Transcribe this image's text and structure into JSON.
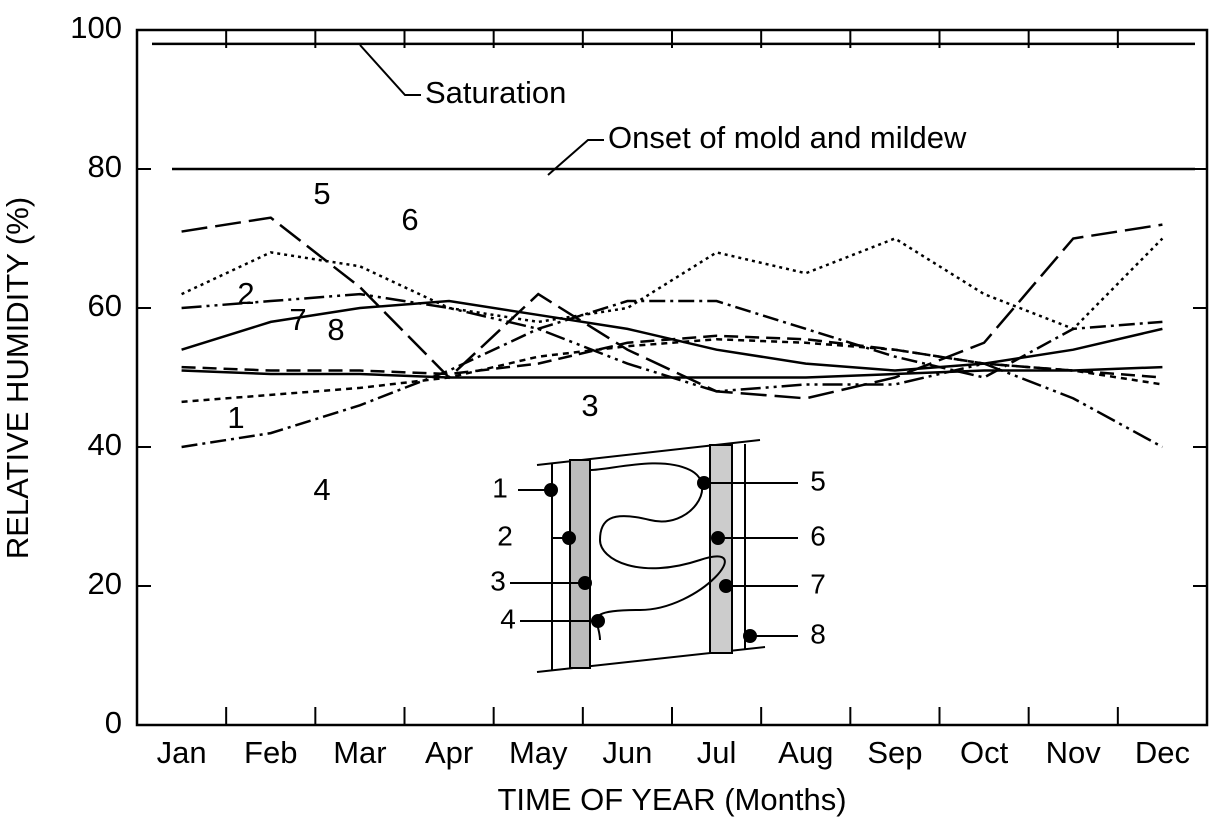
{
  "chart_data": {
    "type": "line",
    "xlabel": "TIME OF YEAR (Months)",
    "ylabel": "RELATIVE HUMIDITY (%)",
    "categories": [
      "Jan",
      "Feb",
      "Mar",
      "Apr",
      "May",
      "Jun",
      "Jul",
      "Aug",
      "Sep",
      "Oct",
      "Nov",
      "Dec"
    ],
    "ylim": [
      0,
      100
    ],
    "yticks": [
      0,
      20,
      40,
      60,
      80,
      100
    ],
    "grid": false,
    "reference_lines": [
      {
        "label": "Saturation",
        "value": 98
      },
      {
        "label": "Onset of mold and mildew",
        "value": 80
      }
    ],
    "series": [
      {
        "name": "1",
        "color": "#000000",
        "dash": "none",
        "values": [
          51,
          50.5,
          50.5,
          50,
          50,
          50,
          50,
          50,
          50.5,
          51,
          51,
          51.5
        ]
      },
      {
        "name": "2",
        "color": "#000000",
        "dash": "14 7",
        "values": [
          51.5,
          51,
          51,
          50.5,
          52,
          55,
          56,
          55.5,
          54,
          52,
          51,
          50
        ]
      },
      {
        "name": "3",
        "color": "#000000",
        "dash": "6 5",
        "values": [
          46.5,
          47.5,
          48.5,
          50,
          53,
          54.5,
          55.5,
          55,
          54,
          52,
          51,
          49
        ]
      },
      {
        "name": "4",
        "color": "#000000",
        "dash": "16 5 3 5",
        "values": [
          40,
          42,
          46,
          51,
          57,
          61,
          61,
          57,
          53,
          50,
          57,
          58
        ]
      },
      {
        "name": "5",
        "color": "#000000",
        "dash": "26 8",
        "values": [
          71,
          73,
          63,
          50,
          62,
          54,
          48,
          47,
          50,
          55,
          70,
          72
        ]
      },
      {
        "name": "6",
        "color": "#000000",
        "dash": "3 4",
        "values": [
          62,
          68,
          66,
          60,
          58,
          60,
          68,
          65,
          70,
          62,
          57,
          70
        ]
      },
      {
        "name": "7",
        "color": "#000000",
        "dash": "none",
        "values": [
          54,
          58,
          60,
          61,
          59,
          57,
          54,
          52,
          51,
          52,
          54,
          57
        ]
      },
      {
        "name": "8",
        "color": "#000000",
        "dash": "20 5 3 5 3 5",
        "values": [
          60,
          61,
          62,
          60,
          57,
          52,
          48,
          49,
          49,
          52,
          47,
          40
        ]
      }
    ]
  }
}
